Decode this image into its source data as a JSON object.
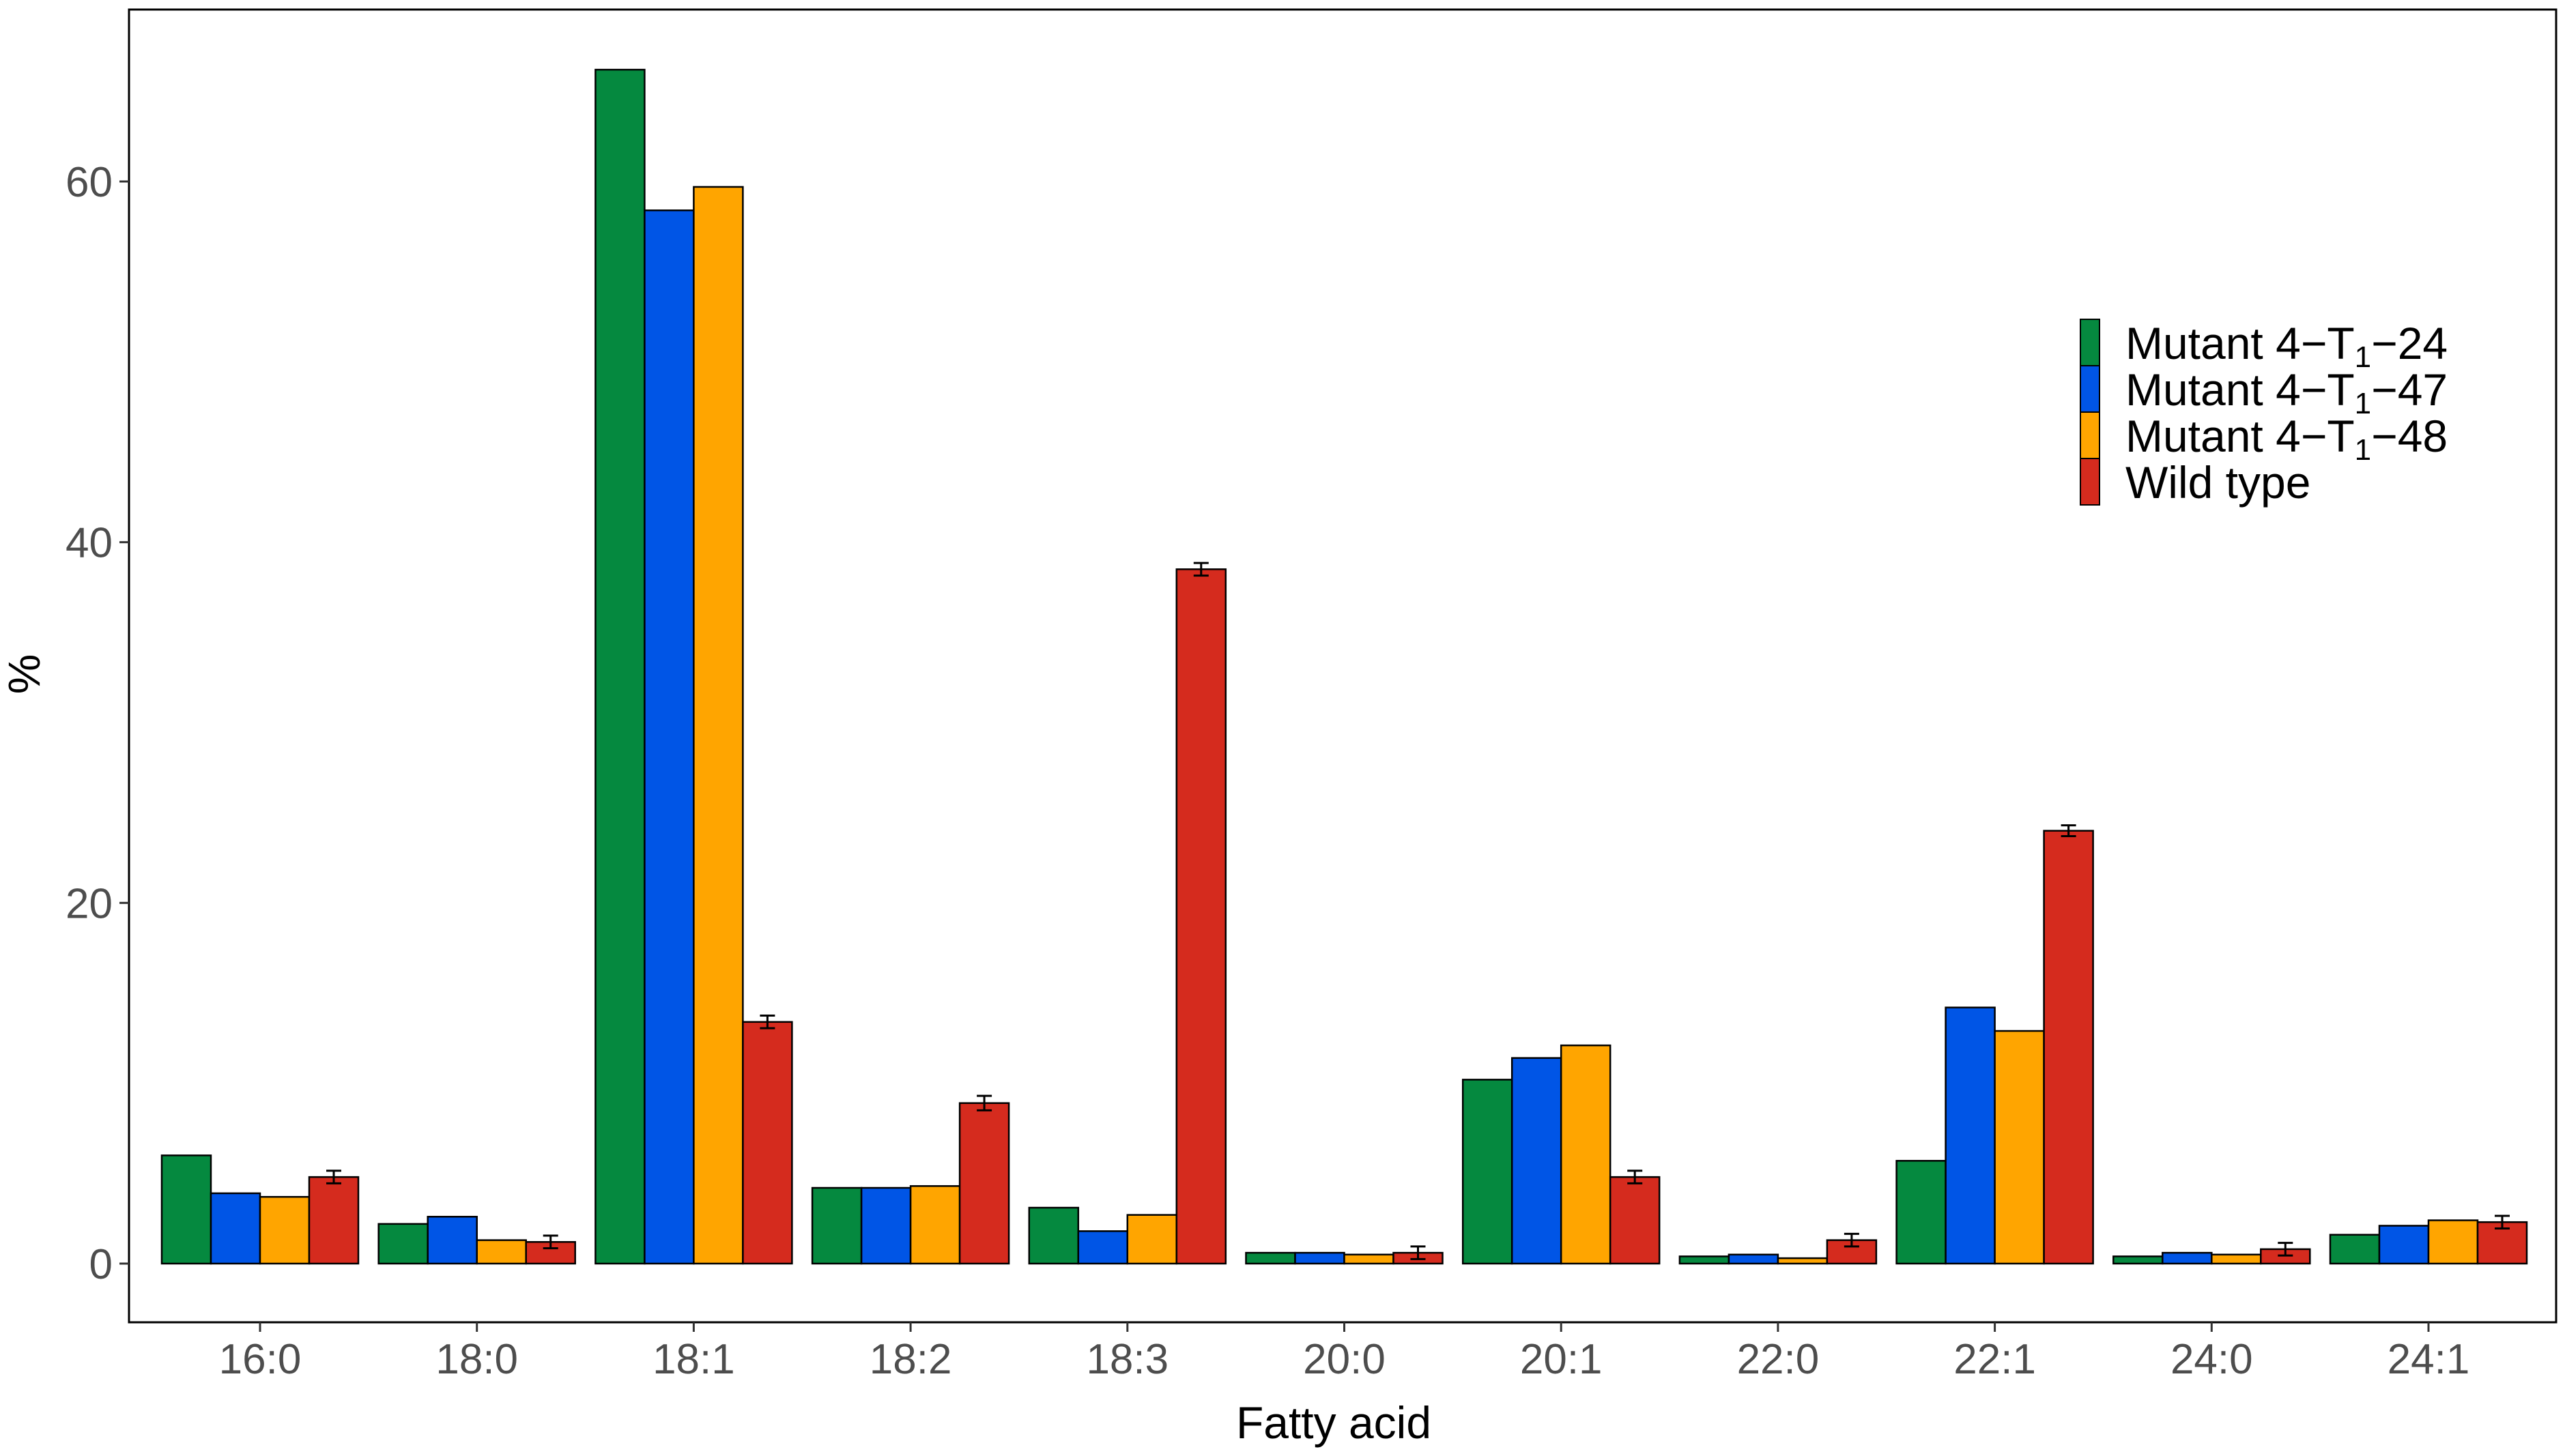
{
  "chart_data": {
    "type": "bar",
    "title": "",
    "xlabel": "Fatty acid",
    "ylabel": "%",
    "ylim": [
      -3.0,
      69.5
    ],
    "yticks": [
      0,
      20,
      40,
      60
    ],
    "grid": false,
    "legend_position": "right",
    "categories": [
      "16:0",
      "18:0",
      "18:1",
      "18:2",
      "18:3",
      "20:0",
      "20:1",
      "22:0",
      "22:1",
      "24:0",
      "24:1"
    ],
    "series": [
      {
        "name": "Mutant 4−T1−24",
        "legend_parts": {
          "prefix": "Mutant 4−T",
          "sub": "1",
          "suffix": "−24"
        },
        "color": "#05893f",
        "values": [
          6.0,
          2.2,
          66.2,
          4.2,
          3.1,
          0.6,
          10.2,
          0.4,
          5.7,
          0.4,
          1.6
        ],
        "errors": null
      },
      {
        "name": "Mutant 4−T1−47",
        "legend_parts": {
          "prefix": "Mutant 4−T",
          "sub": "1",
          "suffix": "−47"
        },
        "color": "#0055e6",
        "values": [
          3.9,
          2.6,
          58.4,
          4.2,
          1.8,
          0.6,
          11.4,
          0.5,
          14.2,
          0.6,
          2.1
        ],
        "errors": null
      },
      {
        "name": "Mutant 4−T1−48",
        "legend_parts": {
          "prefix": "Mutant 4−T",
          "sub": "1",
          "suffix": "−48"
        },
        "color": "#ffa500",
        "values": [
          3.7,
          1.3,
          59.7,
          4.3,
          2.7,
          0.5,
          12.1,
          0.3,
          12.9,
          0.5,
          2.4
        ],
        "errors": null
      },
      {
        "name": "Wild type",
        "legend_parts": {
          "prefix": "Wild type",
          "sub": "",
          "suffix": ""
        },
        "color": "#d52b1e",
        "values": [
          4.8,
          1.2,
          13.4,
          8.9,
          38.5,
          0.6,
          4.8,
          1.3,
          24.0,
          0.8,
          2.3
        ],
        "errors": [
          0.35,
          0.35,
          0.35,
          0.4,
          0.35,
          0.35,
          0.35,
          0.35,
          0.3,
          0.35,
          0.35
        ]
      }
    ]
  }
}
